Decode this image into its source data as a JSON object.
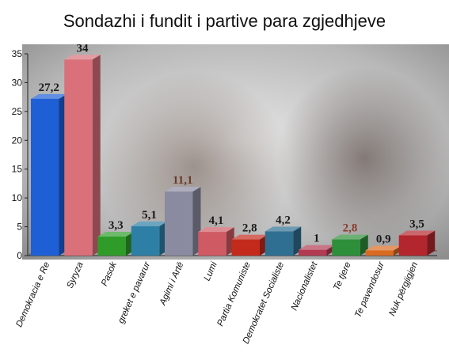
{
  "chart_data": {
    "type": "bar",
    "title": "Sondazhi i fundit i partive para zgjedhjeve",
    "xlabel": "",
    "ylabel": "",
    "ylim": [
      0,
      35
    ],
    "yticks": [
      "0",
      "5",
      "10",
      "15",
      "20",
      "25",
      "30",
      "35"
    ],
    "grid": false,
    "legend": "none",
    "categories": [
      "Demokracia e Re",
      "Syryza",
      "Pasok",
      "greket e pavarur",
      "Agimi i Artë",
      "Lumi",
      "Partia Komuniste",
      "Demokratet Socialiste",
      "Nacionalistet",
      "Te tjere",
      "Te pavendosur",
      "Nuk përgjigjen"
    ],
    "values": [
      27.2,
      34,
      3.3,
      5.1,
      11.1,
      4.1,
      2.8,
      4.2,
      1,
      2.8,
      0.9,
      3.5
    ],
    "value_labels": [
      "27,2",
      "34",
      "3,3",
      "5,1",
      "11,1",
      "4,1",
      "2,8",
      "4,2",
      "1",
      "2,8",
      "0,9",
      "3,5"
    ],
    "colors": [
      "#1f5fd6",
      "#d9707a",
      "#2f9c2a",
      "#2e7fa6",
      "#8a8aa0",
      "#d05a64",
      "#c42a1c",
      "#2f6f92",
      "#b23a52",
      "#2e8f3a",
      "#d86a22",
      "#b3262e"
    ],
    "label_colors": [
      "#1a1a1a",
      "#1a1a1a",
      "#1a1a1a",
      "#1a1a1a",
      "#6b3b2b",
      "#1a1a1a",
      "#1a1a1a",
      "#1a1a1a",
      "#1a1a1a",
      "#8b3a2b",
      "#1a1a1a",
      "#1a1a1a"
    ]
  }
}
